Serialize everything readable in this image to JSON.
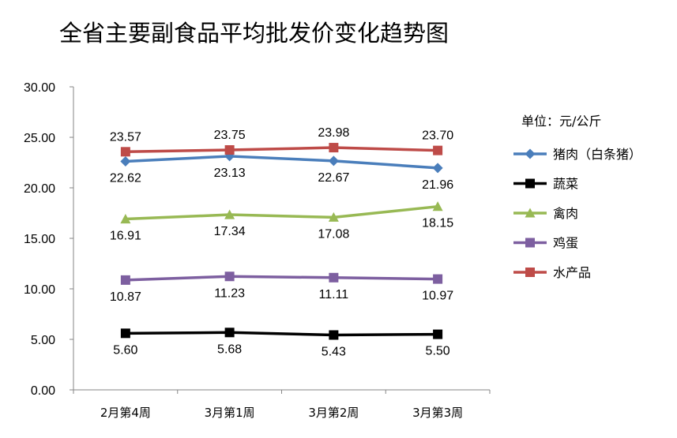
{
  "chart_data": {
    "type": "line",
    "title": "全省主要副食品平均批发价变化趋势图",
    "unit_label": "单位：元/公斤",
    "categories": [
      "2月第4周",
      "3月第1周",
      "3月第2周",
      "3月第3周"
    ],
    "ylim": [
      0,
      30
    ],
    "yticks": [
      "0.00",
      "5.00",
      "10.00",
      "15.00",
      "20.00",
      "25.00",
      "30.00"
    ],
    "grid": false,
    "legend_position": "right",
    "series": [
      {
        "name": "猪肉（白条猪）",
        "values": [
          22.62,
          23.13,
          22.67,
          21.96
        ],
        "labels": [
          "22.62",
          "23.13",
          "22.67",
          "21.96"
        ],
        "color": "#4a7ebb",
        "marker": "diamond",
        "label_pos": "below"
      },
      {
        "name": "蔬菜",
        "values": [
          5.6,
          5.68,
          5.43,
          5.5
        ],
        "labels": [
          "5.60",
          "5.68",
          "5.43",
          "5.50"
        ],
        "color": "#000000",
        "marker": "square",
        "label_pos": "below"
      },
      {
        "name": "禽肉",
        "values": [
          16.91,
          17.34,
          17.08,
          18.15
        ],
        "labels": [
          "16.91",
          "17.34",
          "17.08",
          "18.15"
        ],
        "color": "#98b954",
        "marker": "triangle",
        "label_pos": "below"
      },
      {
        "name": "鸡蛋",
        "values": [
          10.87,
          11.23,
          11.11,
          10.97
        ],
        "labels": [
          "10.87",
          "11.23",
          "11.11",
          "10.97"
        ],
        "color": "#7d5fa0",
        "marker": "square",
        "label_pos": "below"
      },
      {
        "name": "水产品",
        "values": [
          23.57,
          23.75,
          23.98,
          23.7
        ],
        "labels": [
          "23.57",
          "23.75",
          "23.98",
          "23.70"
        ],
        "color": "#be4b48",
        "marker": "square",
        "label_pos": "above"
      }
    ]
  }
}
